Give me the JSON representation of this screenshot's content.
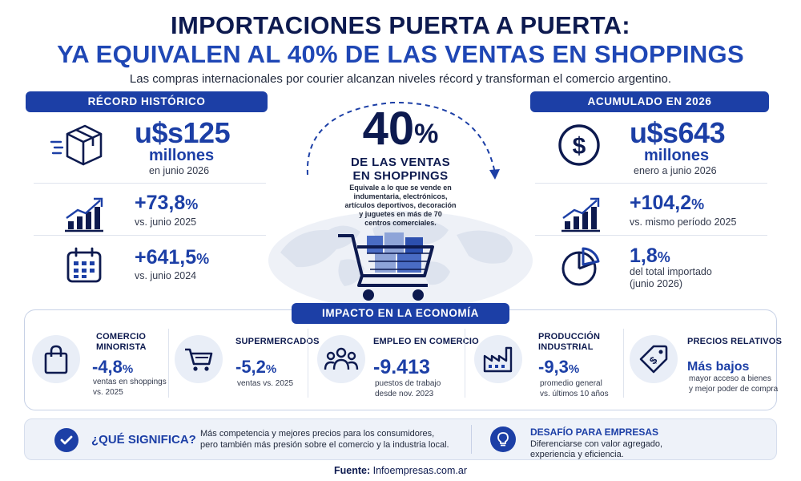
{
  "header": {
    "title_line1": "IMPORTACIONES PUERTA A PUERTA:",
    "title_line2": "YA EQUIVALEN AL 40% DE LAS VENTAS EN SHOPPINGS",
    "subtitle": "Las compras internacionales por courier alcanzan niveles récord y transforman el comercio argentino."
  },
  "left": {
    "section": "RÉCORD HISTÓRICO",
    "stat1": {
      "value": "u$s125",
      "unit_line": "millones",
      "caption": "en junio 2026",
      "icon": "package-box-icon"
    },
    "stat2": {
      "value": "+73,8",
      "unit": "%",
      "caption": "vs. junio 2025",
      "icon": "growth-chart-icon"
    },
    "stat3": {
      "value": "+641,5",
      "unit": "%",
      "caption": "vs. junio 2024",
      "icon": "calendar-icon"
    }
  },
  "right": {
    "section": "ACUMULADO EN 2026",
    "stat1": {
      "value": "u$s643",
      "unit_line": "millones",
      "caption": "enero a junio 2026",
      "icon": "dollar-coin-icon"
    },
    "stat2": {
      "value": "+104,2",
      "unit": "%",
      "caption": "vs. mismo período 2025",
      "icon": "growth-chart-icon"
    },
    "stat3": {
      "value": "1,8",
      "unit": "%",
      "caption_line1": "del total importado",
      "caption_line2": "(junio 2026)",
      "icon": "pie-chart-icon"
    }
  },
  "center": {
    "value": "40",
    "unit": "%",
    "line1": "DE LAS VENTAS",
    "line2": "EN SHOPPINGS",
    "desc_line1": "Equivale a lo que se vende en",
    "desc_line2": "indumentaria, electrónicos,",
    "desc_line3": "artículos deportivos, decoración",
    "desc_line4": "y juguetes en más de 70",
    "desc_line5": "centros comerciales."
  },
  "impact": {
    "section": "IMPACTO EN LA ECONOMÍA",
    "items": [
      {
        "title_line1": "COMERCIO",
        "title_line2": "MINORISTA",
        "value": "-4,8",
        "unit": "%",
        "desc_line1": "ventas en shoppings",
        "desc_line2": "vs. 2025",
        "icon": "shopping-bag-icon"
      },
      {
        "title_line1": "SUPERMERCADOS",
        "title_line2": "",
        "value": "-5,2",
        "unit": "%",
        "desc_line1": "ventas vs. 2025",
        "desc_line2": "",
        "icon": "shopping-cart-icon"
      },
      {
        "title_line1": "EMPLEO EN COMERCIO",
        "title_line2": "",
        "value": "-9.413",
        "unit": "",
        "desc_line1": "puestos de trabajo",
        "desc_line2": "desde nov. 2023",
        "icon": "people-group-icon"
      },
      {
        "title_line1": "PRODUCCIÓN",
        "title_line2": "INDUSTRIAL",
        "value": "-9,3",
        "unit": "%",
        "desc_line1": "promedio general",
        "desc_line2": "vs. últimos 10 años",
        "icon": "factory-icon"
      },
      {
        "title_line1": "PRECIOS RELATIVOS",
        "title_line2": "",
        "value": "Más bajos",
        "unit": "",
        "desc_line1": "mayor acceso a bienes",
        "desc_line2": "y mejor poder de compra",
        "icon": "price-tag-icon"
      }
    ]
  },
  "bottom": {
    "meaning_title": "¿QUÉ SIGNIFICA?",
    "meaning_line1": "Más competencia y mejores precios para los consumidores,",
    "meaning_line2": "pero también más presión sobre el comercio y la industria local.",
    "challenge_title": "DESAFÍO PARA EMPRESAS",
    "challenge_line1": "Diferenciarse con valor agregado,",
    "challenge_line2": "experiencia y eficiencia."
  },
  "footer": {
    "label": "Fuente:",
    "source": "Infoempresas.com.ar"
  },
  "colors": {
    "navy": "#0d1a4f",
    "accent_blue": "#1c3fa6",
    "light_panel": "#eef2f9"
  }
}
